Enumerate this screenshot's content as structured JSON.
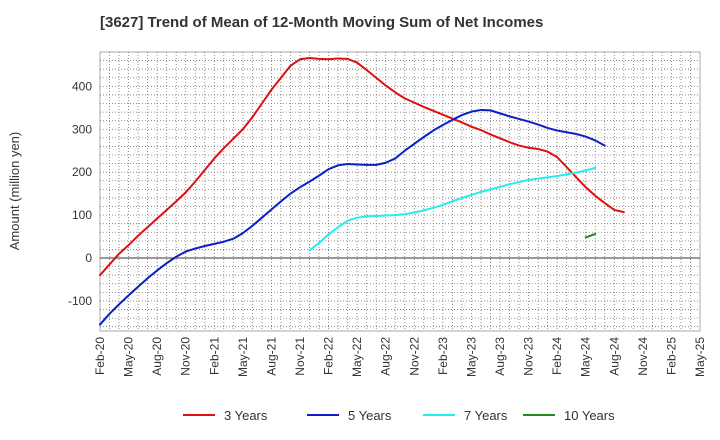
{
  "chart_data": {
    "type": "line",
    "title": "[3627]  Trend of Mean of 12-Month Moving Sum of Net Incomes",
    "ylabel": "Amount (million yen)",
    "xlabel": "",
    "ylim": [
      -170,
      480
    ],
    "yticks": [
      -100,
      0,
      100,
      200,
      300,
      400
    ],
    "x_tick_labels": [
      "Feb-20",
      "May-20",
      "Aug-20",
      "Nov-20",
      "Feb-21",
      "May-21",
      "Aug-21",
      "Nov-21",
      "Feb-22",
      "May-22",
      "Aug-22",
      "Nov-22",
      "Feb-23",
      "May-23",
      "Aug-23",
      "Nov-23",
      "Feb-24",
      "May-24",
      "Aug-24",
      "Nov-24",
      "Feb-25",
      "May-25"
    ],
    "grid": true,
    "legend_position": "bottom",
    "series": [
      {
        "name": "3 Years",
        "color": "#dd1111",
        "points": [
          [
            "2020-02",
            -40
          ],
          [
            "2020-03",
            -15
          ],
          [
            "2020-04",
            10
          ],
          [
            "2020-05",
            30
          ],
          [
            "2020-06",
            52
          ],
          [
            "2020-07",
            72
          ],
          [
            "2020-08",
            92
          ],
          [
            "2020-09",
            112
          ],
          [
            "2020-10",
            132
          ],
          [
            "2020-11",
            153
          ],
          [
            "2020-12",
            178
          ],
          [
            "2021-01",
            205
          ],
          [
            "2021-02",
            232
          ],
          [
            "2021-03",
            256
          ],
          [
            "2021-04",
            278
          ],
          [
            "2021-05",
            300
          ],
          [
            "2021-06",
            328
          ],
          [
            "2021-07",
            360
          ],
          [
            "2021-08",
            392
          ],
          [
            "2021-09",
            420
          ],
          [
            "2021-10",
            448
          ],
          [
            "2021-11",
            463
          ],
          [
            "2021-12",
            466
          ],
          [
            "2022-01",
            464
          ],
          [
            "2022-02",
            463
          ],
          [
            "2022-03",
            465
          ],
          [
            "2022-04",
            464
          ],
          [
            "2022-05",
            455
          ],
          [
            "2022-06",
            438
          ],
          [
            "2022-07",
            420
          ],
          [
            "2022-08",
            402
          ],
          [
            "2022-09",
            386
          ],
          [
            "2022-10",
            372
          ],
          [
            "2022-11",
            362
          ],
          [
            "2022-12",
            352
          ],
          [
            "2023-01",
            343
          ],
          [
            "2023-02",
            334
          ],
          [
            "2023-03",
            325
          ],
          [
            "2023-04",
            316
          ],
          [
            "2023-05",
            306
          ],
          [
            "2023-06",
            298
          ],
          [
            "2023-07",
            288
          ],
          [
            "2023-08",
            279
          ],
          [
            "2023-09",
            270
          ],
          [
            "2023-10",
            262
          ],
          [
            "2023-11",
            257
          ],
          [
            "2023-12",
            254
          ],
          [
            "2024-01",
            248
          ],
          [
            "2024-02",
            235
          ],
          [
            "2024-03",
            212
          ],
          [
            "2024-04",
            188
          ],
          [
            "2024-05",
            165
          ],
          [
            "2024-06",
            145
          ],
          [
            "2024-07",
            128
          ],
          [
            "2024-08",
            112
          ],
          [
            "2024-09",
            107
          ]
        ]
      },
      {
        "name": "5 Years",
        "color": "#0b1fc4",
        "points": [
          [
            "2020-02",
            -155
          ],
          [
            "2020-03",
            -130
          ],
          [
            "2020-04",
            -108
          ],
          [
            "2020-05",
            -87
          ],
          [
            "2020-06",
            -67
          ],
          [
            "2020-07",
            -47
          ],
          [
            "2020-08",
            -29
          ],
          [
            "2020-09",
            -12
          ],
          [
            "2020-10",
            3
          ],
          [
            "2020-11",
            15
          ],
          [
            "2020-12",
            22
          ],
          [
            "2021-01",
            28
          ],
          [
            "2021-02",
            33
          ],
          [
            "2021-03",
            38
          ],
          [
            "2021-04",
            45
          ],
          [
            "2021-05",
            58
          ],
          [
            "2021-06",
            75
          ],
          [
            "2021-07",
            94
          ],
          [
            "2021-08",
            113
          ],
          [
            "2021-09",
            132
          ],
          [
            "2021-10",
            150
          ],
          [
            "2021-11",
            165
          ],
          [
            "2021-12",
            178
          ],
          [
            "2022-01",
            192
          ],
          [
            "2022-02",
            207
          ],
          [
            "2022-03",
            216
          ],
          [
            "2022-04",
            219
          ],
          [
            "2022-05",
            218
          ],
          [
            "2022-06",
            217
          ],
          [
            "2022-07",
            217
          ],
          [
            "2022-08",
            222
          ],
          [
            "2022-09",
            232
          ],
          [
            "2022-10",
            250
          ],
          [
            "2022-11",
            266
          ],
          [
            "2022-12",
            282
          ],
          [
            "2023-01",
            297
          ],
          [
            "2023-02",
            310
          ],
          [
            "2023-03",
            322
          ],
          [
            "2023-04",
            333
          ],
          [
            "2023-05",
            341
          ],
          [
            "2023-06",
            345
          ],
          [
            "2023-07",
            344
          ],
          [
            "2023-08",
            337
          ],
          [
            "2023-09",
            330
          ],
          [
            "2023-10",
            324
          ],
          [
            "2023-11",
            318
          ],
          [
            "2023-12",
            311
          ],
          [
            "2024-01",
            303
          ],
          [
            "2024-02",
            297
          ],
          [
            "2024-03",
            293
          ],
          [
            "2024-04",
            289
          ],
          [
            "2024-05",
            283
          ],
          [
            "2024-06",
            274
          ],
          [
            "2024-07",
            262
          ]
        ]
      },
      {
        "name": "7 Years",
        "color": "#22eeee",
        "points": [
          [
            "2021-12",
            18
          ],
          [
            "2022-01",
            35
          ],
          [
            "2022-02",
            55
          ],
          [
            "2022-03",
            72
          ],
          [
            "2022-04",
            87
          ],
          [
            "2022-05",
            94
          ],
          [
            "2022-06",
            97
          ],
          [
            "2022-07",
            98
          ],
          [
            "2022-08",
            99
          ],
          [
            "2022-09",
            100
          ],
          [
            "2022-10",
            102
          ],
          [
            "2022-11",
            106
          ],
          [
            "2022-12",
            111
          ],
          [
            "2023-01",
            117
          ],
          [
            "2023-02",
            124
          ],
          [
            "2023-03",
            132
          ],
          [
            "2023-04",
            140
          ],
          [
            "2023-05",
            147
          ],
          [
            "2023-06",
            154
          ],
          [
            "2023-07",
            160
          ],
          [
            "2023-08",
            166
          ],
          [
            "2023-09",
            172
          ],
          [
            "2023-10",
            177
          ],
          [
            "2023-11",
            182
          ],
          [
            "2023-12",
            185
          ],
          [
            "2024-01",
            188
          ],
          [
            "2024-02",
            191
          ],
          [
            "2024-03",
            195
          ],
          [
            "2024-04",
            199
          ],
          [
            "2024-05",
            204
          ],
          [
            "2024-06",
            210
          ]
        ]
      },
      {
        "name": "10 Years",
        "color": "#228822",
        "points": [
          [
            "2024-05",
            48
          ],
          [
            "2024-06",
            56
          ]
        ]
      }
    ]
  }
}
